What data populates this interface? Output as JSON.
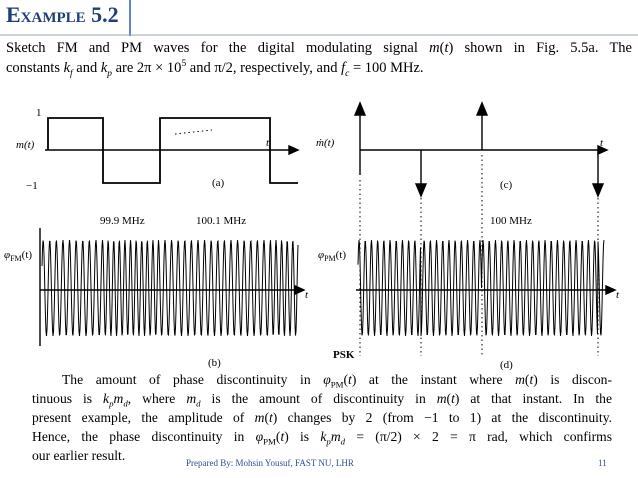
{
  "header": {
    "title": "Example 5.2"
  },
  "intro": {
    "line1": [
      "Sketch FM and PM waves for the digital modulating signal ",
      "m",
      "(",
      "t",
      ")",
      " shown in Fig. 5.5a. The"
    ],
    "line2": [
      "constants ",
      "k",
      "f",
      " and ",
      "k",
      "p",
      " are 2π × 10",
      "5",
      " and π/2, respectively, and ",
      "f",
      "c",
      " = 100 MHz."
    ]
  },
  "figure": {
    "a": {
      "high": "1",
      "low": "−1",
      "signal": "m(t)",
      "axis": "t",
      "caption": "(a)"
    },
    "b": {
      "freq_low": "99.9 MHz",
      "freq_high": "100.1 MHz",
      "signal": "φ",
      "signal_sub": "FM",
      "signal_arg": "(t)",
      "axis": "t",
      "caption": "(b)"
    },
    "c": {
      "signal": "ṁ(t)",
      "axis": "t",
      "caption": "(c)"
    },
    "d": {
      "freq": "100 MHz",
      "signal": "φ",
      "signal_sub": "PM",
      "signal_arg": "(t)",
      "axis": "t",
      "caption": "(d)",
      "note": "PSK"
    }
  },
  "paragraph": {
    "line1": [
      "The amount of phase discontinuity in ",
      "φ",
      "PM",
      "(",
      "t",
      ") at the instant where ",
      "m",
      "(",
      "t",
      ")",
      " is discon-"
    ],
    "line2": [
      "tinuous is ",
      "k",
      "p",
      "m",
      "d",
      ", where ",
      "m",
      "d",
      " is the amount of discontinuity in ",
      "m",
      "(",
      "t",
      ")",
      " at that instant. In the"
    ],
    "line3": [
      "present example, the amplitude of ",
      "m",
      "(",
      "t",
      ")",
      " changes by 2 (from −1 to 1) at the discontinuity."
    ],
    "line4": [
      "Hence, the phase discontinuity in ",
      "φ",
      "PM",
      "(",
      "t",
      ") is ",
      "k",
      "p",
      "m",
      "d",
      " = (π/2) × 2 = π rad, which confirms"
    ],
    "line5": [
      "our earlier result."
    ]
  },
  "footer": {
    "credit": "Prepared By: Mohsin Yousuf, FAST NU, LHR",
    "page": "11"
  }
}
